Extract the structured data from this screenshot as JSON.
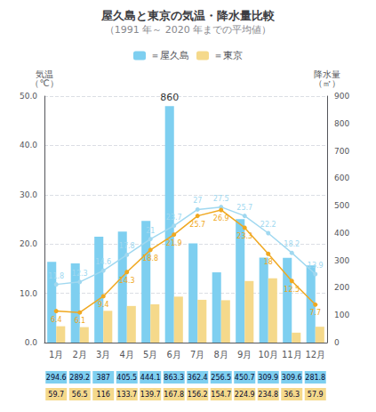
{
  "chart_data": {
    "type": "bar",
    "title": "屋久島と東京の気温・降水量比較",
    "subtitle": "（1991 年～ 2020 年までの平均値）",
    "categories": [
      "1月",
      "2月",
      "3月",
      "4月",
      "5月",
      "6月",
      "7月",
      "8月",
      "9月",
      "10月",
      "11月",
      "12月"
    ],
    "series": [
      {
        "name": "＝屋久島",
        "type": "bar",
        "axis": "y2",
        "color": "#7ecff0",
        "data_labels": true,
        "values": [
          294.6,
          289.2,
          387.0,
          405.5,
          444.1,
          863.3,
          362.4,
          256.5,
          450.7,
          309.9,
          309.6,
          281.8
        ]
      },
      {
        "name": "＝東京",
        "type": "bar",
        "axis": "y2",
        "color": "#f5d98b",
        "data_labels": true,
        "values": [
          59.7,
          56.5,
          116.0,
          133.7,
          139.7,
          167.8,
          156.2,
          154.7,
          224.9,
          234.8,
          36.3,
          57.9
        ]
      },
      {
        "type": "line",
        "color": "#a0d8f0",
        "marker": "circle",
        "data_labels": true,
        "values": [
          11.8,
          12.3,
          14.6,
          17.8,
          21.0,
          23.7,
          27.0,
          27.5,
          25.7,
          22.2,
          18.2,
          13.9
        ]
      },
      {
        "type": "line",
        "color": "#f0a820",
        "marker": "circle",
        "data_labels": true,
        "values": [
          6.4,
          6.1,
          9.4,
          14.3,
          18.8,
          21.9,
          25.7,
          26.9,
          23.3,
          18.0,
          12.5,
          7.7
        ]
      }
    ],
    "ylabel": "気温\n（℃）",
    "y2label": "降水量\n（㎡）",
    "ylim": [
      0,
      50
    ],
    "yticks": [
      {
        "value": 0,
        "label": "0.0"
      },
      {
        "value": 10,
        "label": "10.0"
      },
      {
        "value": 20,
        "label": "20.0"
      },
      {
        "value": 30,
        "label": "30.0"
      },
      {
        "value": 40,
        "label": "40.0"
      },
      {
        "value": 50,
        "label": "50.0"
      }
    ],
    "y2lim": [
      0,
      900
    ],
    "y2ticks": [
      0,
      100,
      200,
      300,
      400,
      500,
      600,
      700,
      800,
      900
    ],
    "grid": true,
    "legend": "top",
    "annotations": [
      {
        "text": "860",
        "x": "6月"
      }
    ]
  }
}
